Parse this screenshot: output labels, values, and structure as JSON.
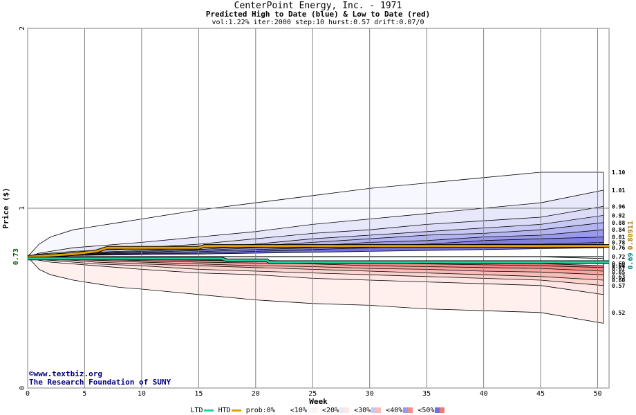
{
  "chart_data": {
    "type": "area",
    "title": "CenterPoint Energy, Inc. - 1971",
    "subtitle": "Predicted High to Date (blue) &  Low to Date (red)",
    "params": "vol:1.22% iter:2000 step:10 hurst:0.57 drift:0.07/0",
    "xlabel": "Week",
    "ylabel": "Price ($)",
    "xlim": [
      0,
      51
    ],
    "ylim": [
      0,
      2
    ],
    "x_ticks": [
      0,
      5,
      10,
      15,
      20,
      25,
      30,
      35,
      40,
      45,
      50
    ],
    "y_ticks": [
      0,
      1,
      2
    ],
    "start_price": 0.73,
    "start_label": "0.73",
    "grid": true,
    "weeks": [
      0,
      1,
      2,
      4,
      6,
      8,
      10,
      15,
      20,
      25,
      30,
      35,
      40,
      45,
      50.5
    ],
    "high_bands": [
      {
        "label": "1.10",
        "values": [
          0.73,
          0.8,
          0.84,
          0.88,
          0.9,
          0.92,
          0.94,
          0.99,
          1.03,
          1.07,
          1.11,
          1.14,
          1.17,
          1.2,
          1.2
        ],
        "color": "#f7f7ff"
      },
      {
        "label": "1.01",
        "values": [
          0.73,
          0.75,
          0.76,
          0.78,
          0.79,
          0.8,
          0.81,
          0.84,
          0.87,
          0.91,
          0.94,
          0.97,
          1.0,
          1.03,
          1.1
        ],
        "color": "#e8e8fb"
      },
      {
        "label": "0.96",
        "values": [
          0.73,
          0.745,
          0.75,
          0.76,
          0.765,
          0.77,
          0.78,
          0.8,
          0.83,
          0.86,
          0.88,
          0.91,
          0.93,
          0.95,
          1.01
        ],
        "color": "#dcdcf8"
      },
      {
        "label": "0.92",
        "values": [
          0.73,
          0.74,
          0.745,
          0.75,
          0.755,
          0.76,
          0.765,
          0.78,
          0.8,
          0.83,
          0.85,
          0.87,
          0.89,
          0.91,
          0.96
        ],
        "color": "#c8c8f4"
      },
      {
        "label": "0.88",
        "values": [
          0.73,
          0.738,
          0.742,
          0.748,
          0.752,
          0.756,
          0.76,
          0.77,
          0.79,
          0.81,
          0.83,
          0.85,
          0.86,
          0.88,
          0.92
        ],
        "color": "#b4b4f0"
      },
      {
        "label": "0.84",
        "values": [
          0.73,
          0.735,
          0.74,
          0.745,
          0.748,
          0.752,
          0.755,
          0.765,
          0.78,
          0.79,
          0.81,
          0.82,
          0.84,
          0.85,
          0.88
        ],
        "color": "#9a9aea"
      },
      {
        "label": "0.81",
        "values": [
          0.73,
          0.733,
          0.737,
          0.742,
          0.745,
          0.748,
          0.75,
          0.758,
          0.77,
          0.78,
          0.79,
          0.8,
          0.82,
          0.83,
          0.84
        ],
        "color": "#8080e4"
      },
      {
        "label": "0.78",
        "values": [
          0.73,
          0.732,
          0.735,
          0.74,
          0.742,
          0.744,
          0.746,
          0.75,
          0.76,
          0.77,
          0.78,
          0.79,
          0.8,
          0.8,
          0.81
        ],
        "color": "#7070de"
      },
      {
        "label": "0.76",
        "values": [
          0.73,
          0.731,
          0.733,
          0.737,
          0.739,
          0.74,
          0.742,
          0.745,
          0.75,
          0.755,
          0.76,
          0.765,
          0.77,
          0.775,
          0.78
        ],
        "color": "#ffffff"
      }
    ],
    "low_bands": [
      {
        "label": "0.52",
        "values": [
          0.73,
          0.66,
          0.63,
          0.6,
          0.58,
          0.56,
          0.55,
          0.52,
          0.49,
          0.47,
          0.46,
          0.44,
          0.43,
          0.42,
          0.36
        ],
        "color": "#fff0ee"
      },
      {
        "label": "0.57",
        "values": [
          0.73,
          0.71,
          0.7,
          0.69,
          0.68,
          0.67,
          0.66,
          0.64,
          0.63,
          0.61,
          0.6,
          0.59,
          0.58,
          0.57,
          0.52
        ],
        "color": "#fde6e3"
      },
      {
        "label": "0.60",
        "values": [
          0.73,
          0.715,
          0.71,
          0.7,
          0.69,
          0.685,
          0.68,
          0.66,
          0.65,
          0.64,
          0.63,
          0.62,
          0.61,
          0.6,
          0.57
        ],
        "color": "#fbd3cf"
      },
      {
        "label": "0.63",
        "values": [
          0.73,
          0.72,
          0.715,
          0.71,
          0.7,
          0.695,
          0.69,
          0.68,
          0.67,
          0.66,
          0.65,
          0.64,
          0.63,
          0.62,
          0.6
        ],
        "color": "#f8bdb8"
      },
      {
        "label": "0.65",
        "values": [
          0.73,
          0.723,
          0.72,
          0.715,
          0.71,
          0.705,
          0.7,
          0.69,
          0.68,
          0.675,
          0.665,
          0.66,
          0.65,
          0.645,
          0.63
        ],
        "color": "#f5a6a1"
      },
      {
        "label": "0.67",
        "values": [
          0.73,
          0.725,
          0.722,
          0.718,
          0.715,
          0.712,
          0.708,
          0.7,
          0.695,
          0.69,
          0.68,
          0.675,
          0.67,
          0.665,
          0.65
        ],
        "color": "#f28e88"
      },
      {
        "label": "0.68",
        "values": [
          0.73,
          0.727,
          0.725,
          0.722,
          0.72,
          0.717,
          0.715,
          0.71,
          0.705,
          0.7,
          0.695,
          0.69,
          0.685,
          0.68,
          0.67
        ],
        "color": "#ef7a73"
      },
      {
        "label": "0.69",
        "values": [
          0.73,
          0.728,
          0.726,
          0.724,
          0.722,
          0.72,
          0.718,
          0.714,
          0.71,
          0.705,
          0.7,
          0.698,
          0.695,
          0.692,
          0.68
        ],
        "color": "#ffffff"
      },
      {
        "label": "0.72",
        "values": [
          0.73,
          0.73,
          0.73,
          0.73,
          0.73,
          0.73,
          0.73,
          0.73,
          0.73,
          0.73,
          0.73,
          0.73,
          0.73,
          0.73,
          0.72
        ],
        "color": "#ffffff"
      }
    ],
    "htd_line": {
      "name": "HTD",
      "color": "#e0a000",
      "x": [
        0,
        1.5,
        4,
        6,
        7,
        15,
        15.5,
        51
      ],
      "y": [
        0.73,
        0.735,
        0.745,
        0.76,
        0.78,
        0.78,
        0.79,
        0.79
      ]
    },
    "ltd_line": {
      "name": "LTD",
      "color": "#20d0a0",
      "x": [
        0,
        6,
        17,
        17.5,
        21,
        21.2,
        51
      ],
      "y": [
        0.72,
        0.72,
        0.72,
        0.71,
        0.71,
        0.7,
        0.7
      ]
    },
    "right_labels_high": [
      "1.10",
      "1.01",
      "0.96",
      "0.92",
      "0.88",
      "0.84",
      "0.81",
      "0.78",
      "0.76"
    ],
    "right_labels_low": [
      "0.72",
      "0.70",
      "0.69",
      "0.68",
      "0.67",
      "0.65",
      "0.63",
      "0.60",
      "0.57",
      "0.52"
    ],
    "right_vertical_ltd": "0.69",
    "right_vertical_htd": "0.80911"
  },
  "credits": {
    "line1": "www.textbiz.org",
    "copyright_symbol": "©",
    "line2": "The Research Foundation of SUNY"
  },
  "legend": {
    "ltd": "LTD",
    "htd": "HTD",
    "prob": "prob:0%",
    "items": [
      "<10%",
      "<20%",
      "<30%",
      "<40%",
      "<50%"
    ],
    "colors": {
      "blue": [
        "#f7f7ff",
        "#e8e8fb",
        "#c8c8f4",
        "#9a9aea",
        "#7070de"
      ],
      "red": [
        "#fff0ee",
        "#fde6e3",
        "#f8bdb8",
        "#f28e88",
        "#ef7a73"
      ],
      "ltd": "#20d0a0",
      "htd": "#e0a000"
    }
  }
}
